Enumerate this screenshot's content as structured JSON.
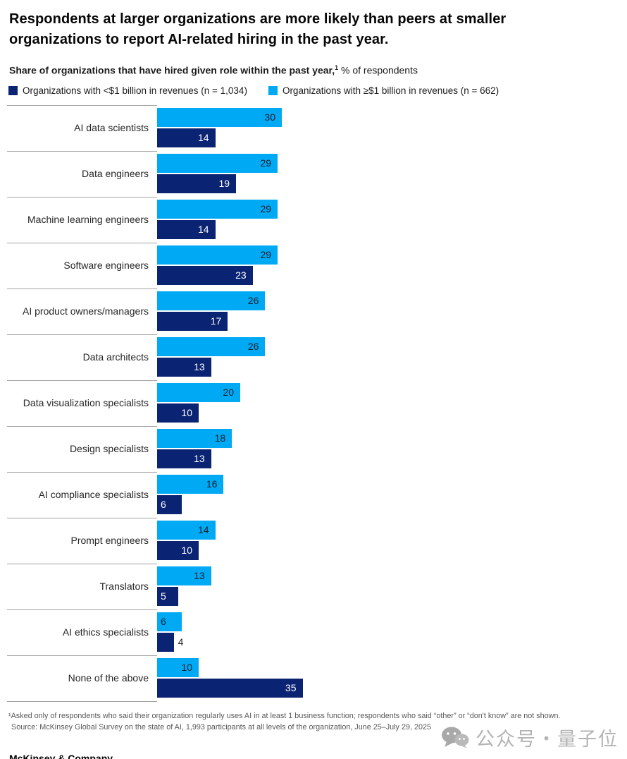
{
  "title": "Respondents at larger organizations are more likely than peers at smaller organizations to report AI-related hiring in the past year.",
  "subtitle": {
    "bold": "Share of organizations that have hired given role within the past year,",
    "sup": "1",
    "regular": " % of respondents"
  },
  "legend": [
    {
      "label": "Organizations with <$1 billion in revenues (n = 1,034)",
      "color": "#0a2372"
    },
    {
      "label": "Organizations with ≥$1 billion in revenues (n = 662)",
      "color": "#00a9f4"
    }
  ],
  "chart_data": {
    "type": "bar",
    "orientation": "horizontal",
    "xlim": [
      0,
      35
    ],
    "grid": false,
    "legend_position": "top",
    "categories": [
      "AI data scientists",
      "Data engineers",
      "Machine learning engineers",
      "Software engineers",
      "AI product owners/managers",
      "Data architects",
      "Data visualization specialists",
      "Design specialists",
      "AI compliance specialists",
      "Prompt engineers",
      "Translators",
      "AI ethics specialists",
      "None of the above"
    ],
    "series": [
      {
        "name": "Organizations with ≥$1 billion in revenues (n = 662)",
        "color": "#00a9f4",
        "values": [
          30,
          29,
          29,
          29,
          26,
          26,
          20,
          18,
          16,
          14,
          13,
          6,
          10
        ]
      },
      {
        "name": "Organizations with <$1 billion in revenues (n = 1,034)",
        "color": "#0a2372",
        "values": [
          14,
          19,
          14,
          23,
          17,
          13,
          10,
          13,
          6,
          10,
          5,
          4,
          35
        ]
      }
    ],
    "value_label_colors": {
      "on_light": "#10202e",
      "on_dark": "#ffffff",
      "outside": "#262626"
    }
  },
  "footnote": "¹Asked only of respondents who said their organization regularly uses AI in at least 1 business function; respondents who said “other” or “don't know” are not shown.",
  "source": "Source: McKinsey Global Survey on the state of AI, 1,993 participants at all levels of the organization, June 25–July 29, 2025",
  "watermark": "公众号・量子位",
  "brand": "McKinsey & Company"
}
